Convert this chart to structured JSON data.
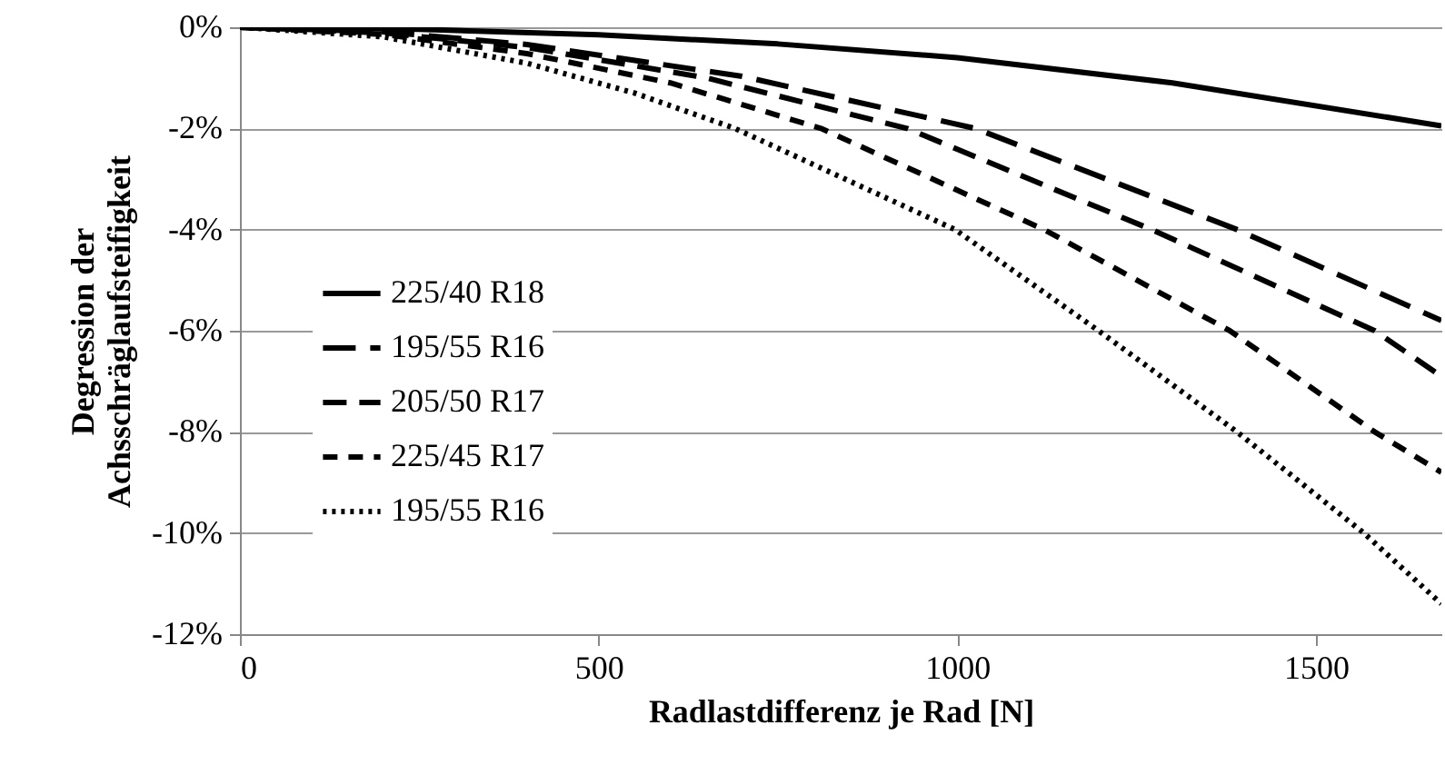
{
  "chart_data": {
    "type": "line",
    "xlabel": "Radlastdifferenz je Rad [N]",
    "ylabel": "Degression der\nAchsschräglaufsteifigkeit",
    "xlim": [
      0,
      1675
    ],
    "xticks": [
      0,
      500,
      1000,
      1500
    ],
    "ylim": [
      -12,
      0
    ],
    "yticks": [
      {
        "value": 0,
        "label": "0%"
      },
      {
        "value": -2,
        "label": "-2%"
      },
      {
        "value": -4,
        "label": "-4%"
      },
      {
        "value": -6,
        "label": "-6%"
      },
      {
        "value": -8,
        "label": "-8%"
      },
      {
        "value": -10,
        "label": "-10%"
      },
      {
        "value": -12,
        "label": "-12%"
      }
    ],
    "grid": "y",
    "legend": "left",
    "series": [
      {
        "name": "225/40 R18",
        "color": "#000000",
        "line_style": "solid",
        "x": [
          0,
          250,
          500,
          750,
          1000,
          1300,
          1675
        ],
        "values": [
          0,
          -0.04,
          -0.15,
          -0.33,
          -0.6,
          -1.1,
          -1.95
        ]
      },
      {
        "name": "195/55 R16",
        "color": "#000000",
        "line_style": "dashed",
        "x": [
          0,
          200,
          400,
          700,
          1025,
          1390,
          1675
        ],
        "values": [
          0,
          -0.09,
          -0.34,
          -0.97,
          -2,
          -4,
          -5.8
        ]
      },
      {
        "name": "205/50 R17",
        "color": "#000000",
        "line_style": "dashed",
        "x": [
          0,
          200,
          400,
          650,
          930,
          1271,
          1582,
          1675
        ],
        "values": [
          0,
          -0.11,
          -0.4,
          -1,
          -2,
          -4,
          -6,
          -6.9
        ]
      },
      {
        "name": "225/45 R17",
        "color": "#000000",
        "line_style": "dashed",
        "x": [
          0,
          200,
          400,
          600,
          810,
          1121,
          1380,
          1582,
          1675
        ],
        "values": [
          0,
          -0.14,
          -0.52,
          -1.1,
          -2,
          -4,
          -6,
          -8,
          -8.8
        ]
      },
      {
        "name": "195/55 R16",
        "color": "#000000",
        "line_style": "dotted",
        "x": [
          0,
          200,
          400,
          550,
          690,
          997,
          1197,
          1390,
          1567,
          1675
        ],
        "values": [
          0,
          -0.19,
          -0.71,
          -1.3,
          -2,
          -4,
          -6,
          -8,
          -10,
          -11.4
        ]
      }
    ]
  }
}
